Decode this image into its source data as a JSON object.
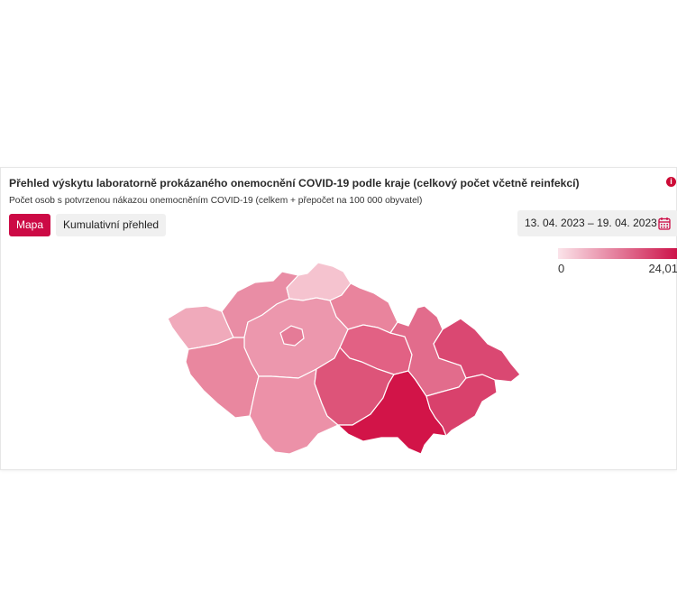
{
  "header": {
    "title": "Přehled výskytu laboratorně prokázaného onemocnění COVID-19 podle kraje (celkový počet včetně reinfekcí)",
    "subtitle": "Počet osob s potvrzenou nákazou onemocněním COVID-19 (celkem + přepočet na 100 000 obyvatel)",
    "info_icon": "info-icon"
  },
  "tabs": [
    {
      "label": "Mapa",
      "active": true
    },
    {
      "label": "Kumulativní přehled",
      "active": false
    }
  ],
  "date_range": {
    "label": "13. 04. 2023 – 19. 04. 2023",
    "icon": "calendar-icon"
  },
  "legend": {
    "min": "0",
    "max": "24,01",
    "color_low": "#fbe4ea",
    "color_high": "#cc1249"
  },
  "regions": [
    {
      "id": "karlovarsky",
      "fill": "#f0aabb"
    },
    {
      "id": "ustecky",
      "fill": "#e98da5"
    },
    {
      "id": "liberecky",
      "fill": "#f5c3cf"
    },
    {
      "id": "kralovehradecky",
      "fill": "#e9849d"
    },
    {
      "id": "pardubicky",
      "fill": "#e26184"
    },
    {
      "id": "stredocesky",
      "fill": "#ec97ad"
    },
    {
      "id": "praha",
      "fill": "#e57b97"
    },
    {
      "id": "plzensky",
      "fill": "#e9879f"
    },
    {
      "id": "jihocesky",
      "fill": "#ec91a8"
    },
    {
      "id": "vysocina",
      "fill": "#dd5479"
    },
    {
      "id": "jihomoravsky",
      "fill": "#d21448"
    },
    {
      "id": "olomoucky",
      "fill": "#e26c8c"
    },
    {
      "id": "moravskoslezsky",
      "fill": "#da4872"
    },
    {
      "id": "zlinsky",
      "fill": "#d9416c"
    }
  ]
}
